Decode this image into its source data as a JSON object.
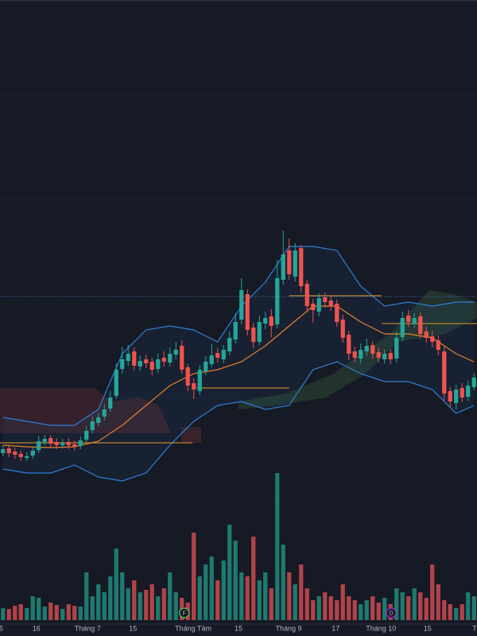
{
  "chart_data": {
    "type": "candlestick",
    "up_color": "#26a69a",
    "down_color": "#ef5350",
    "volume_up_color": "#1f7a70",
    "volume_down_color": "#b2434a",
    "xlim": [
      -0.5,
      79.5
    ],
    "ylim": [
      0,
      65
    ],
    "volume_ylim": [
      0,
      200
    ],
    "xticks": [
      {
        "value": -0.3,
        "label": "5"
      },
      {
        "value": 5.6,
        "label": "16"
      },
      {
        "value": 14.2,
        "label": "Tháng 7"
      },
      {
        "value": 21.8,
        "label": "15"
      },
      {
        "value": 31.9,
        "label": "Tháng Tám"
      },
      {
        "value": 39.5,
        "label": "15"
      },
      {
        "value": 47.9,
        "label": "Tháng 9"
      },
      {
        "value": 55.8,
        "label": "17"
      },
      {
        "value": 63.4,
        "label": "Tháng 10"
      },
      {
        "value": 71.2,
        "label": "15"
      },
      {
        "value": 79.1,
        "label": "T"
      }
    ],
    "open": [
      8.0,
      8.6,
      8.2,
      7.9,
      7.4,
      7.7,
      8.4,
      9.4,
      9.9,
      9.4,
      9.0,
      9.4,
      9.1,
      8.9,
      9.7,
      10.9,
      11.8,
      12.6,
      13.6,
      15.2,
      18.6,
      19.6,
      20.8,
      18.9,
      19.8,
      19.5,
      18.6,
      20.0,
      19.4,
      20.4,
      21.5,
      18.8,
      16.8,
      15.8,
      18.3,
      19.2,
      20.6,
      19.8,
      20.8,
      22.3,
      24.8,
      28.0,
      23.8,
      22.0,
      24.3,
      25.2,
      24.2,
      29.8,
      33.5,
      30.2,
      33.8,
      29.3,
      26.8,
      25.8,
      27.6,
      27.2,
      26.8,
      24.8,
      22.9,
      20.8,
      19.9,
      20.8,
      21.6,
      20.7,
      19.8,
      20.6,
      19.9,
      22.6,
      25.3,
      24.3,
      25.2,
      23.3,
      22.7,
      22.2,
      20.8,
      15.8,
      14.3,
      16.2,
      15.1,
      16.3
    ],
    "high": [
      9.0,
      9.1,
      8.7,
      8.3,
      8.1,
      8.8,
      10.2,
      10.3,
      10.3,
      9.9,
      9.8,
      9.9,
      9.6,
      10.1,
      11.4,
      12.6,
      13.1,
      14.2,
      15.8,
      19.3,
      21.4,
      21.6,
      21.3,
      20.3,
      20.4,
      20.0,
      20.5,
      20.8,
      21.3,
      22.0,
      22.2,
      19.2,
      17.4,
      19.1,
      20.2,
      21.7,
      21.2,
      21.6,
      23.3,
      25.6,
      30.0,
      28.6,
      24.4,
      25.3,
      25.8,
      26.1,
      32.3,
      36.0,
      35.0,
      34.4,
      34.2,
      29.8,
      27.4,
      28.1,
      28.2,
      27.8,
      27.3,
      25.4,
      23.4,
      21.4,
      21.8,
      22.4,
      22.1,
      21.3,
      21.0,
      21.1,
      23.3,
      25.8,
      26.0,
      25.6,
      25.7,
      23.9,
      23.4,
      22.8,
      21.4,
      16.3,
      16.6,
      16.8,
      17.1,
      18.1
    ],
    "low": [
      7.6,
      7.5,
      7.3,
      7.0,
      7.0,
      7.3,
      8.0,
      9.0,
      8.7,
      8.5,
      8.6,
      8.5,
      8.3,
      8.5,
      9.3,
      10.5,
      11.4,
      12.1,
      13.2,
      14.8,
      18.0,
      19.0,
      18.4,
      18.3,
      18.7,
      17.8,
      18.1,
      18.9,
      18.9,
      19.8,
      18.0,
      15.8,
      14.8,
      15.3,
      17.8,
      18.8,
      19.4,
      19.3,
      20.3,
      21.8,
      24.2,
      22.8,
      21.2,
      21.5,
      23.6,
      22.6,
      23.7,
      29.2,
      29.8,
      29.6,
      28.2,
      25.7,
      24.4,
      25.2,
      26.3,
      25.9,
      23.9,
      21.9,
      19.7,
      19.4,
      19.3,
      20.2,
      19.9,
      19.4,
      19.3,
      19.2,
      19.4,
      22.1,
      23.9,
      23.8,
      22.4,
      21.9,
      21.3,
      20.3,
      14.6,
      13.8,
      13.5,
      14.4,
      14.6,
      15.9
    ],
    "close": [
      8.5,
      8.0,
      7.8,
      7.5,
      7.6,
      8.3,
      9.5,
      9.8,
      9.2,
      9.0,
      9.3,
      9.0,
      8.8,
      9.6,
      10.8,
      12.0,
      12.5,
      13.5,
      15.0,
      18.5,
      19.8,
      20.5,
      19.0,
      19.6,
      19.3,
      18.5,
      19.8,
      19.5,
      20.5,
      21.0,
      18.5,
      16.5,
      16.0,
      18.5,
      19.5,
      20.3,
      20.0,
      21.0,
      22.5,
      24.5,
      28.5,
      23.5,
      22.0,
      24.5,
      25.0,
      24.0,
      30.0,
      33.0,
      30.5,
      33.5,
      29.0,
      26.5,
      26.0,
      27.5,
      27.0,
      26.5,
      24.5,
      22.5,
      20.5,
      20.0,
      21.0,
      21.5,
      20.5,
      20.0,
      20.5,
      19.8,
      22.5,
      25.0,
      24.5,
      25.0,
      23.0,
      22.5,
      22.0,
      21.0,
      15.5,
      14.5,
      16.0,
      15.0,
      16.5,
      17.5
    ],
    "volume": [
      15,
      14,
      18,
      20,
      15,
      30,
      28,
      17,
      22,
      19,
      14,
      20,
      18,
      17,
      60,
      30,
      45,
      35,
      55,
      90,
      60,
      40,
      50,
      35,
      38,
      45,
      30,
      40,
      60,
      35,
      28,
      22,
      110,
      55,
      70,
      80,
      50,
      75,
      120,
      100,
      60,
      55,
      105,
      50,
      60,
      40,
      185,
      95,
      60,
      45,
      70,
      40,
      25,
      30,
      35,
      30,
      25,
      45,
      30,
      25,
      20,
      25,
      30,
      22,
      28,
      20,
      40,
      35,
      30,
      40,
      35,
      28,
      70,
      45,
      25,
      20,
      15,
      20,
      35,
      30
    ],
    "bands": {
      "x": [
        0,
        4,
        8,
        12,
        16,
        20,
        24,
        28,
        32,
        36,
        40,
        44,
        48,
        52,
        56,
        60,
        64,
        68,
        72,
        76,
        79
      ],
      "upper": [
        12.5,
        12.0,
        11.5,
        11.5,
        13.5,
        20.5,
        23.5,
        24.0,
        23.5,
        22.0,
        26.5,
        29.5,
        34.0,
        34.0,
        33.5,
        29.0,
        26.5,
        27.0,
        26.5,
        27.0,
        27.0
      ],
      "middle": [
        9.0,
        8.8,
        8.7,
        8.8,
        9.5,
        11.5,
        14.0,
        16.5,
        18.0,
        18.5,
        19.5,
        21.5,
        24.0,
        26.5,
        26.5,
        24.5,
        23.0,
        23.0,
        22.5,
        20.5,
        19.5
      ],
      "lower": [
        6.0,
        5.5,
        5.5,
        6.5,
        5.0,
        4.5,
        5.5,
        9.0,
        12.0,
        14.0,
        14.5,
        13.5,
        14.0,
        18.5,
        19.5,
        18.0,
        17.0,
        17.0,
        16.0,
        13.0,
        14.0
      ],
      "band_color": "#2f7fd9",
      "middle_color": "#e8802a"
    },
    "levels": [
      {
        "value": 9.3,
        "from": -0.5,
        "to": 31.8
      },
      {
        "value": 16.2,
        "from": 32.5,
        "to": 48
      },
      {
        "value": 27.8,
        "from": 48,
        "to": 63.5
      },
      {
        "value": 24.3,
        "from": 63.5,
        "to": 79.5
      }
    ],
    "level_color": "#e89a2a",
    "events": [
      {
        "value": 30.4,
        "label": "F",
        "color": "#4caf50"
      },
      {
        "value": 65.1,
        "label": "D",
        "color": "#9c27b0"
      }
    ]
  }
}
